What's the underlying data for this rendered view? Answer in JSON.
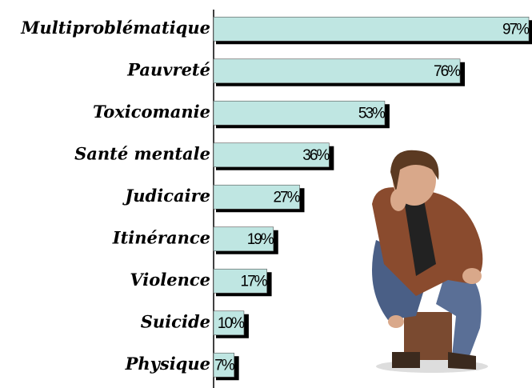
{
  "chart_data": {
    "type": "bar",
    "orientation": "horizontal",
    "categories": [
      "Multiproblématique",
      "Pauvreté",
      "Toxicomanie",
      "Santé mentale",
      "Judicaire",
      "Itinérance",
      "Violence",
      "Suicide",
      "Physique"
    ],
    "values": [
      97,
      76,
      53,
      36,
      27,
      19,
      17,
      10,
      7
    ],
    "value_labels": [
      "97%",
      "76%",
      "53%",
      "36%",
      "27%",
      "19%",
      "17%",
      "10%",
      "7%"
    ],
    "color": "#bfe6e2"
  }
}
